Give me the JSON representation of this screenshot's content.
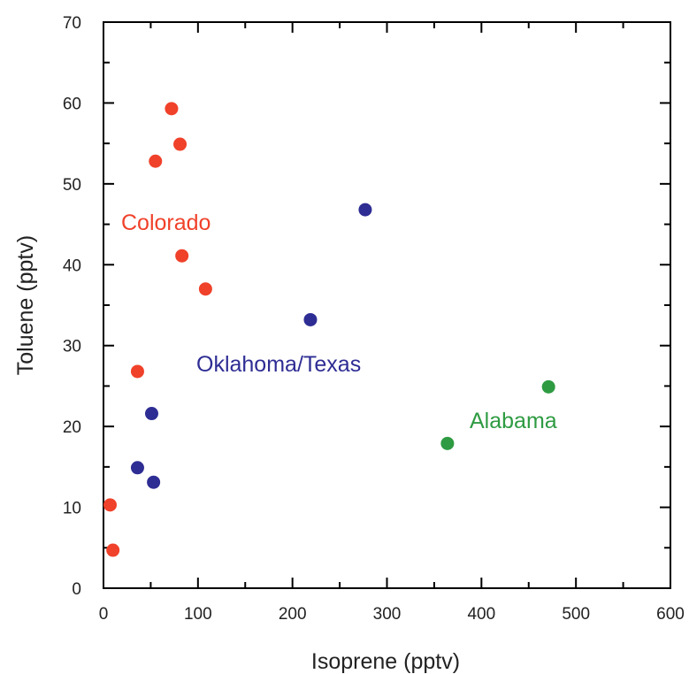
{
  "chart_data": {
    "type": "scatter",
    "title": "",
    "xlabel": "Isoprene (pptv)",
    "ylabel": "Toluene (pptv)",
    "xlim": [
      0,
      600
    ],
    "ylim": [
      0,
      70
    ],
    "x_ticks": [
      0,
      100,
      200,
      300,
      400,
      500,
      600
    ],
    "y_ticks": [
      0,
      10,
      20,
      30,
      40,
      50,
      60,
      70
    ],
    "grid": false,
    "series": [
      {
        "name": "Colorado",
        "color": "#f0412a",
        "points": [
          [
            72,
            59.3
          ],
          [
            81,
            54.9
          ],
          [
            55,
            52.8
          ],
          [
            83,
            41.1
          ],
          [
            108,
            37.0
          ],
          [
            36,
            26.8
          ],
          [
            7,
            10.3
          ],
          [
            10,
            4.7
          ]
        ]
      },
      {
        "name": "Oklahoma/Texas",
        "color": "#2e2d94",
        "points": [
          [
            277,
            46.8
          ],
          [
            219,
            33.2
          ],
          [
            51,
            21.6
          ],
          [
            36,
            14.9
          ],
          [
            53,
            13.1
          ]
        ]
      },
      {
        "name": "Alabama",
        "color": "#2e9b42",
        "points": [
          [
            471,
            24.9
          ],
          [
            364,
            17.9
          ]
        ]
      }
    ]
  }
}
